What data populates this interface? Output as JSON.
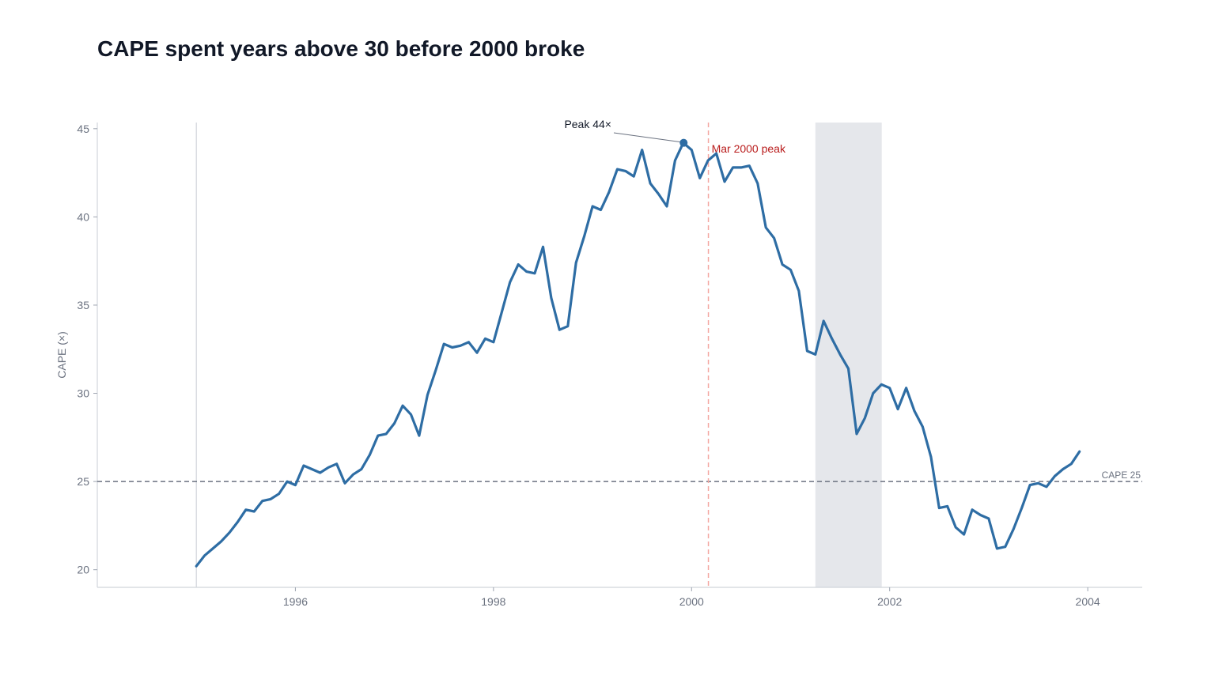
{
  "chart_data": {
    "type": "line",
    "title": "CAPE spent years above 30 before 2000 broke",
    "xlabel": "",
    "ylabel": "CAPE (×)",
    "xlim": [
      1994.0,
      2004.55
    ],
    "ylim": [
      19.0,
      45.35
    ],
    "x_ticks": [
      1996,
      1998,
      2000,
      2002,
      2004
    ],
    "y_ticks": [
      20,
      25,
      30,
      35,
      40,
      45
    ],
    "grid": false,
    "colors": {
      "line": "#2e6da4",
      "reference_line": "#6b7280",
      "event_line": "#f4a6a0",
      "event_text": "#b91c1c",
      "recession_band": "#e5e7eb",
      "axis": "#d1d5db"
    },
    "series": [
      {
        "name": "",
        "x_start": 1995.0,
        "x_step_months": 1,
        "values": [
          20.2,
          20.8,
          21.2,
          21.6,
          22.1,
          22.7,
          23.4,
          23.3,
          23.9,
          24.0,
          24.3,
          25.0,
          24.8,
          25.9,
          25.7,
          25.5,
          25.8,
          26.0,
          24.9,
          25.4,
          25.7,
          26.5,
          27.6,
          27.7,
          28.3,
          29.3,
          28.8,
          27.6,
          29.9,
          31.3,
          32.8,
          32.6,
          32.7,
          32.9,
          32.3,
          33.1,
          32.9,
          34.6,
          36.3,
          37.3,
          36.9,
          36.8,
          38.3,
          35.4,
          33.6,
          33.8,
          37.4,
          38.9,
          40.6,
          40.4,
          41.4,
          42.7,
          42.6,
          42.3,
          43.8,
          41.9,
          41.3,
          40.6,
          43.2,
          44.2,
          43.8,
          42.2,
          43.2,
          43.6,
          42.0,
          42.8,
          42.8,
          42.9,
          41.9,
          39.4,
          38.8,
          37.3,
          37.0,
          35.8,
          32.4,
          32.2,
          34.1,
          33.1,
          32.2,
          31.4,
          27.7,
          28.6,
          30.0,
          30.5,
          30.3,
          29.1,
          30.3,
          29.0,
          28.1,
          26.4,
          23.5,
          23.6,
          22.4,
          22.0,
          23.4,
          23.1,
          22.9,
          21.2,
          21.3,
          22.3,
          23.5,
          24.8,
          24.9,
          24.7,
          25.3,
          25.7,
          26.0,
          26.7
        ]
      }
    ],
    "reference_line": {
      "y": 25,
      "label": "CAPE 25"
    },
    "event_line": {
      "x": 2000.17,
      "label": "Mar 2000 peak"
    },
    "shaded_band": {
      "x_start": 2001.25,
      "x_end": 2001.92
    },
    "annotation": {
      "text": "Peak 44×",
      "x": 1999.92,
      "y": 44.2
    }
  }
}
